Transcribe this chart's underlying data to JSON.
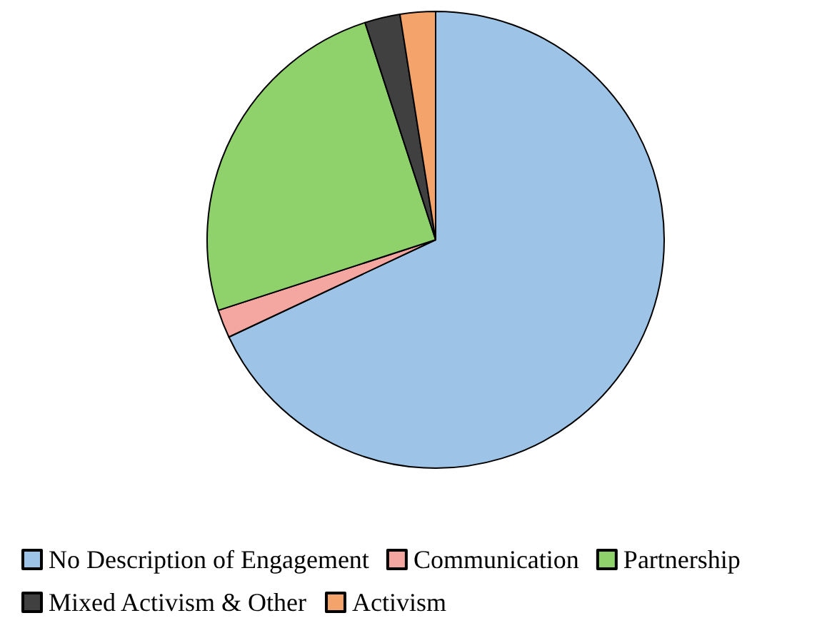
{
  "chart_data": {
    "type": "pie",
    "categories": [
      "No Description of Engagement",
      "Communication",
      "Partnership",
      "Mixed Activism & Other",
      "Activism"
    ],
    "values": [
      68,
      2,
      25,
      2.5,
      2.5
    ],
    "colors": [
      "#9dc3e6",
      "#f4a6a0",
      "#8fd16a",
      "#404040",
      "#f4a46a"
    ],
    "legend": "bottom"
  }
}
